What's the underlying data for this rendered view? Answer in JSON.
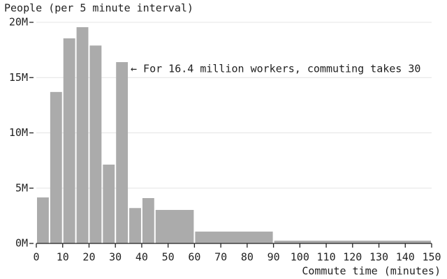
{
  "chart_data": {
    "type": "histogram",
    "ylabel": "People (per 5 minute interval)",
    "xlabel": "Commute time (minutes)",
    "annotation": "← For 16.4 million workers, commuting takes 30",
    "bins": [
      0,
      5,
      10,
      15,
      20,
      25,
      30,
      35,
      40,
      45,
      60,
      90,
      150
    ],
    "values": [
      4160000,
      13700000,
      18550000,
      19560000,
      17900000,
      7130000,
      16400000,
      3200000,
      4100000,
      3030000,
      1070000,
      250000
    ],
    "color": "#ababab",
    "xlim": [
      0,
      150
    ],
    "xticks": [
      0,
      10,
      20,
      30,
      40,
      50,
      60,
      70,
      80,
      90,
      100,
      110,
      120,
      130,
      140,
      150
    ],
    "ylim": [
      0,
      20000000
    ],
    "yticks": [
      {
        "value": 0,
        "label": "0M"
      },
      {
        "value": 5000000,
        "label": "5M"
      },
      {
        "value": 10000000,
        "label": "10M"
      },
      {
        "value": 15000000,
        "label": "15M"
      },
      {
        "value": 20000000,
        "label": "20M"
      }
    ],
    "grid": true
  }
}
